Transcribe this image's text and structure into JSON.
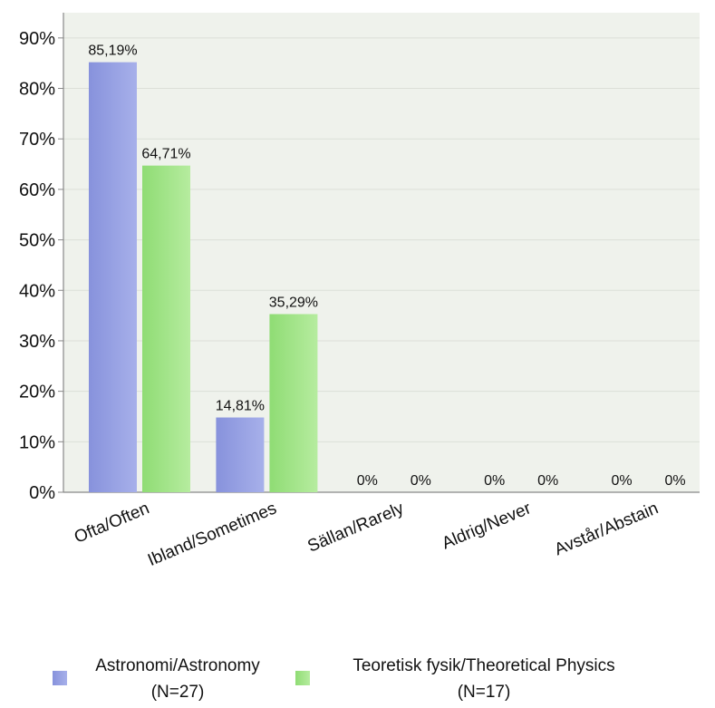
{
  "chart_data": {
    "type": "bar",
    "categories": [
      "Ofta/Often",
      "Ibland/Sometimes",
      "Sällan/Rarely",
      "Aldrig/Never",
      "Avstår/Abstain"
    ],
    "series": [
      {
        "name": "Astronomi/Astronomy (N=27)",
        "legend_lines": [
          "Astronomi/Astronomy",
          "(N=27)"
        ],
        "values": [
          85.19,
          14.81,
          0,
          0,
          0
        ],
        "labels": [
          "85,19%",
          "14,81%",
          "0%",
          "0%",
          "0%"
        ],
        "color": "#8792dc",
        "color_light": "#a7b0ea"
      },
      {
        "name": "Teoretisk fysik/Theoretical Physics (N=17)",
        "legend_lines": [
          "Teoretisk fysik/Theoretical Physics",
          "(N=17)"
        ],
        "values": [
          64.71,
          35.29,
          0,
          0,
          0
        ],
        "labels": [
          "64,71%",
          "35,29%",
          "0%",
          "0%",
          "0%"
        ],
        "color": "#8fdc74",
        "color_light": "#b6ec9f"
      }
    ],
    "ylim": [
      0,
      95
    ],
    "yticks": [
      0,
      10,
      20,
      30,
      40,
      50,
      60,
      70,
      80,
      90
    ],
    "ytick_labels": [
      "0%",
      "10%",
      "20%",
      "30%",
      "40%",
      "50%",
      "60%",
      "70%",
      "80%",
      "90%"
    ],
    "xlabel": "",
    "ylabel": "",
    "grid": true,
    "legend_position": "bottom",
    "background_color": "#eff2ec"
  }
}
